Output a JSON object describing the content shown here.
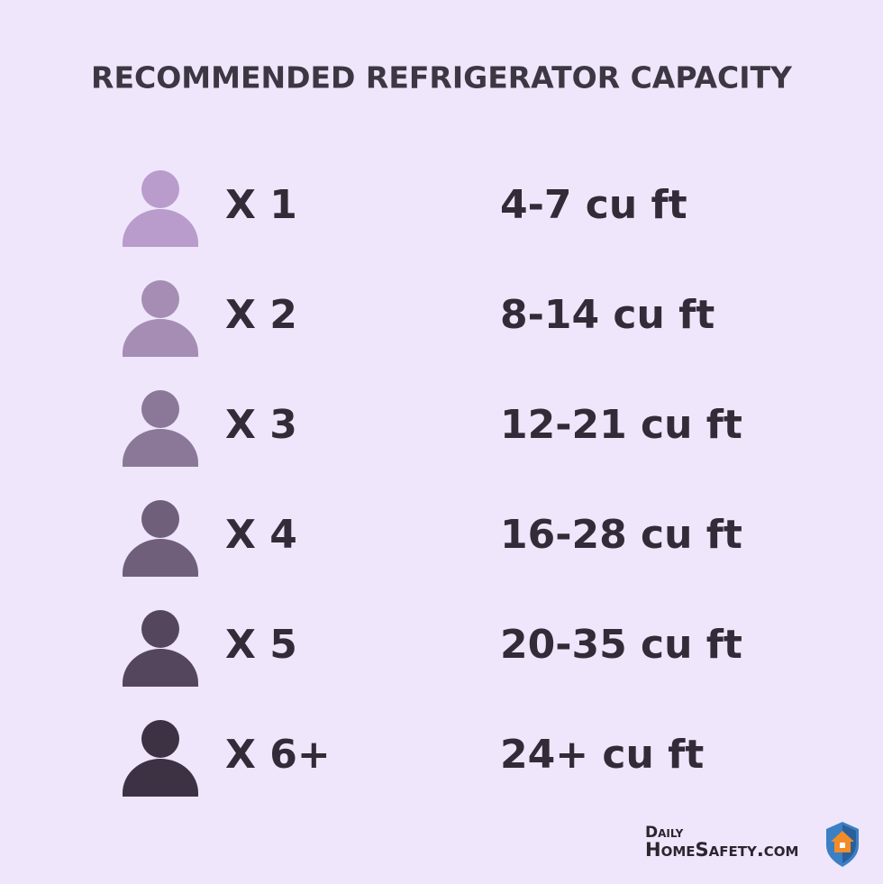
{
  "title": "RECOMMENDED REFRIGERATOR CAPACITY",
  "rows": [
    {
      "people": "X 1",
      "capacity": "4-7 cu ft"
    },
    {
      "people": "X 2",
      "capacity": "8-14 cu ft"
    },
    {
      "people": "X 3",
      "capacity": "12-21 cu ft"
    },
    {
      "people": "X 4",
      "capacity": "16-28 cu ft"
    },
    {
      "people": "X 5",
      "capacity": "20-35 cu ft"
    },
    {
      "people": "X 6+",
      "capacity": "24+ cu ft"
    }
  ],
  "logo": {
    "line1": "Daily",
    "line2": "HomeSafety.com"
  }
}
